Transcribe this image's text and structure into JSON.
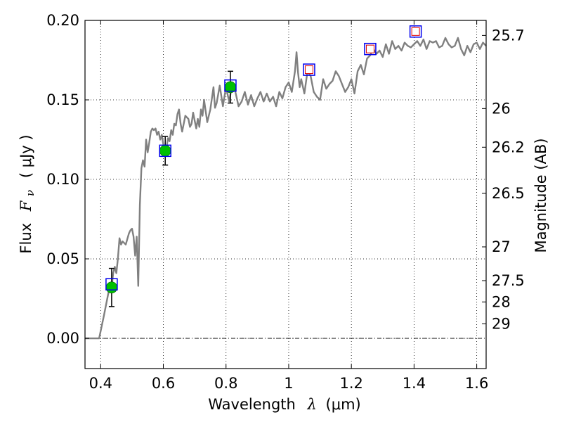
{
  "chart_data": {
    "type": "line",
    "title": "",
    "xlabel_text": "Wavelength",
    "xlabel_symbol": "λ",
    "xlabel_unit": "(μm)",
    "ylabel_text": "Flux",
    "ylabel_symbol": "F",
    "ylabel_sub": "ν",
    "ylabel_unit": "( μJy )",
    "y2label": "Magnitude (AB)",
    "xlim": [
      0.35,
      1.63
    ],
    "ylim": [
      -0.019,
      0.2
    ],
    "grid": true,
    "xticks": [
      {
        "value": 0.4,
        "label": "0.4"
      },
      {
        "value": 0.6,
        "label": "0.6"
      },
      {
        "value": 0.8,
        "label": "0.8"
      },
      {
        "value": 1.0,
        "label": "1"
      },
      {
        "value": 1.2,
        "label": "1.2"
      },
      {
        "value": 1.4,
        "label": "1.4"
      },
      {
        "value": 1.6,
        "label": "1.6"
      }
    ],
    "yticks": [
      {
        "value": 0.0,
        "label": "0.00"
      },
      {
        "value": 0.05,
        "label": "0.05"
      },
      {
        "value": 0.1,
        "label": "0.10"
      },
      {
        "value": 0.15,
        "label": "0.15"
      },
      {
        "value": 0.2,
        "label": "0.20"
      }
    ],
    "y2ticks": [
      {
        "value": 25.7,
        "label": "25.7"
      },
      {
        "value": 26,
        "label": "26"
      },
      {
        "value": 26.2,
        "label": "26.2"
      },
      {
        "value": 26.5,
        "label": "26.5"
      },
      {
        "value": 27,
        "label": "27"
      },
      {
        "value": 27.5,
        "label": "27.5"
      },
      {
        "value": 28,
        "label": "28"
      },
      {
        "value": 29,
        "label": "29"
      }
    ],
    "colors": {
      "spectrum": "#808080",
      "observed": "#00c000",
      "model_box": "#0000ee",
      "upper_limit": "#e00000",
      "errorbar": "#000000",
      "zero_line": "#000000"
    },
    "series": [
      {
        "name": "model spectrum",
        "style": "line",
        "x": [
          0.35,
          0.395,
          0.41,
          0.425,
          0.435,
          0.44,
          0.445,
          0.45,
          0.455,
          0.46,
          0.465,
          0.47,
          0.48,
          0.49,
          0.495,
          0.5,
          0.505,
          0.51,
          0.515,
          0.52,
          0.525,
          0.53,
          0.535,
          0.54,
          0.545,
          0.55,
          0.555,
          0.56,
          0.565,
          0.57,
          0.575,
          0.58,
          0.585,
          0.59,
          0.595,
          0.6,
          0.605,
          0.61,
          0.615,
          0.62,
          0.625,
          0.63,
          0.635,
          0.64,
          0.645,
          0.65,
          0.655,
          0.66,
          0.67,
          0.68,
          0.685,
          0.69,
          0.695,
          0.7,
          0.705,
          0.71,
          0.715,
          0.72,
          0.725,
          0.73,
          0.74,
          0.75,
          0.76,
          0.765,
          0.77,
          0.78,
          0.79,
          0.8,
          0.81,
          0.82,
          0.83,
          0.84,
          0.85,
          0.86,
          0.87,
          0.88,
          0.89,
          0.9,
          0.91,
          0.92,
          0.93,
          0.94,
          0.95,
          0.96,
          0.97,
          0.98,
          0.99,
          1.0,
          1.01,
          1.02,
          1.025,
          1.03,
          1.035,
          1.04,
          1.05,
          1.06,
          1.07,
          1.08,
          1.09,
          1.1,
          1.11,
          1.12,
          1.13,
          1.14,
          1.15,
          1.16,
          1.17,
          1.18,
          1.19,
          1.2,
          1.21,
          1.22,
          1.23,
          1.24,
          1.25,
          1.26,
          1.27,
          1.28,
          1.29,
          1.3,
          1.31,
          1.32,
          1.33,
          1.34,
          1.35,
          1.36,
          1.37,
          1.38,
          1.39,
          1.4,
          1.41,
          1.42,
          1.43,
          1.44,
          1.45,
          1.46,
          1.47,
          1.48,
          1.49,
          1.5,
          1.51,
          1.52,
          1.53,
          1.54,
          1.55,
          1.56,
          1.57,
          1.58,
          1.59,
          1.6,
          1.61,
          1.62,
          1.63
        ],
        "y": [
          0.0,
          0.0,
          0.014,
          0.029,
          0.032,
          0.041,
          0.045,
          0.041,
          0.05,
          0.063,
          0.059,
          0.061,
          0.059,
          0.066,
          0.068,
          0.069,
          0.064,
          0.052,
          0.064,
          0.033,
          0.084,
          0.107,
          0.112,
          0.108,
          0.125,
          0.117,
          0.123,
          0.13,
          0.132,
          0.131,
          0.132,
          0.128,
          0.13,
          0.125,
          0.128,
          0.122,
          0.118,
          0.12,
          0.126,
          0.124,
          0.131,
          0.128,
          0.135,
          0.134,
          0.141,
          0.144,
          0.135,
          0.13,
          0.14,
          0.138,
          0.133,
          0.135,
          0.142,
          0.137,
          0.132,
          0.138,
          0.133,
          0.144,
          0.14,
          0.15,
          0.136,
          0.144,
          0.158,
          0.145,
          0.148,
          0.159,
          0.146,
          0.158,
          0.149,
          0.16,
          0.155,
          0.146,
          0.149,
          0.155,
          0.147,
          0.153,
          0.146,
          0.151,
          0.155,
          0.149,
          0.154,
          0.149,
          0.152,
          0.146,
          0.155,
          0.151,
          0.158,
          0.161,
          0.155,
          0.168,
          0.18,
          0.167,
          0.158,
          0.163,
          0.154,
          0.168,
          0.165,
          0.155,
          0.152,
          0.15,
          0.163,
          0.157,
          0.16,
          0.162,
          0.168,
          0.165,
          0.16,
          0.155,
          0.158,
          0.163,
          0.154,
          0.168,
          0.172,
          0.166,
          0.176,
          0.178,
          0.182,
          0.179,
          0.181,
          0.177,
          0.185,
          0.179,
          0.187,
          0.182,
          0.184,
          0.181,
          0.186,
          0.184,
          0.183,
          0.185,
          0.187,
          0.184,
          0.188,
          0.182,
          0.187,
          0.186,
          0.187,
          0.183,
          0.184,
          0.189,
          0.185,
          0.183,
          0.184,
          0.189,
          0.182,
          0.178,
          0.184,
          0.18,
          0.185,
          0.186,
          0.182,
          0.186,
          0.184
        ]
      },
      {
        "name": "observed photometry",
        "style": "points",
        "points": [
          {
            "x": 0.435,
            "y": 0.032,
            "err": 0.012
          },
          {
            "x": 0.606,
            "y": 0.118,
            "err": 0.009
          },
          {
            "x": 0.814,
            "y": 0.158,
            "err": 0.01
          }
        ]
      },
      {
        "name": "model photometry",
        "style": "squares",
        "points": [
          {
            "x": 0.435,
            "y": 0.034
          },
          {
            "x": 0.606,
            "y": 0.118
          },
          {
            "x": 0.814,
            "y": 0.159
          },
          {
            "x": 1.065,
            "y": 0.169
          },
          {
            "x": 1.26,
            "y": 0.182
          },
          {
            "x": 1.405,
            "y": 0.193
          }
        ]
      },
      {
        "name": "upper limits",
        "style": "red-squares",
        "points": [
          {
            "x": 1.065,
            "y": 0.169
          },
          {
            "x": 1.26,
            "y": 0.182
          },
          {
            "x": 1.405,
            "y": 0.193
          }
        ]
      }
    ]
  }
}
